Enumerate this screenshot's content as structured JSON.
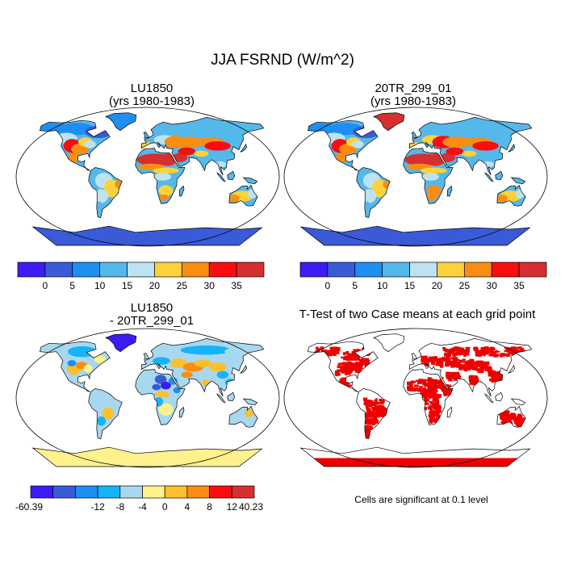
{
  "title": "JJA FSRND (W/m^2)",
  "panels": [
    {
      "id": "lu1850",
      "title": "LU1850",
      "subtitle": "(yrs 1980-1983)"
    },
    {
      "id": "20tr",
      "title": "20TR_299_01",
      "subtitle": "(yrs 1980-1983)"
    },
    {
      "id": "diff",
      "title": "LU1850",
      "subtitle": "- 20TR_299_01"
    },
    {
      "id": "ttest",
      "title": "T-Test of two Case means at each grid point",
      "subtitle": ""
    }
  ],
  "colorbar_main": {
    "labels": [
      "0",
      "5",
      "10",
      "15",
      "20",
      "25",
      "30",
      "35"
    ],
    "colors": [
      "#3b1cf2",
      "#3a5ad8",
      "#1e8ef0",
      "#55b8ea",
      "#bde3f2",
      "#fbd23c",
      "#f98d12",
      "#f80e0e",
      "#d62f2f"
    ]
  },
  "colorbar_diff": {
    "labels": [
      "-60.39",
      "-12",
      "-8",
      "-4",
      "0",
      "4",
      "8",
      "12",
      "40.23"
    ],
    "colors": [
      "#3b1cf2",
      "#3a5ad8",
      "#1e8ef0",
      "#14b4f8",
      "#a8d8f0",
      "#fff18c",
      "#fbc02d",
      "#f98d12",
      "#f80e0e",
      "#d62f2f"
    ]
  },
  "significance_color": "#ee0000",
  "note": "Cells are significant at 0.1 level"
}
